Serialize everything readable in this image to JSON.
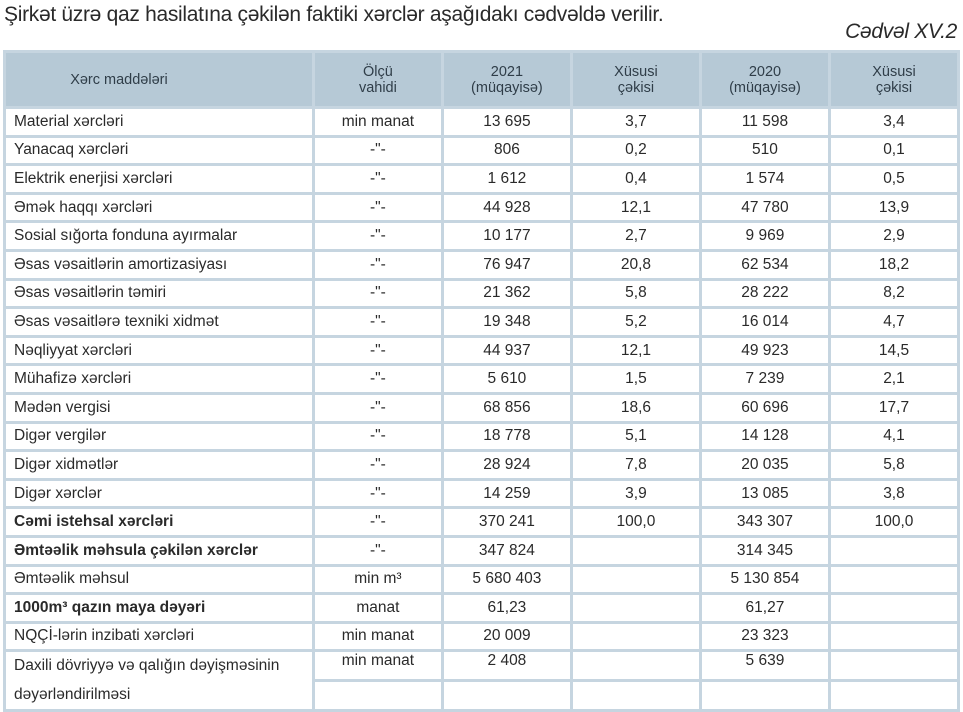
{
  "intro_text": "Şirkət üzrə qaz hasilatına çəkilən faktiki xərclər aşağıdakı cədvəldə verilir.",
  "table_caption": "Cədvəl XV.2",
  "table": {
    "headers": [
      "Xərc maddələri",
      "Ölçü vahidi",
      "2021 (müqayisə)",
      "Xüsusi çəkisi",
      "2020 (müqayisə)",
      "Xüsusi çəkisi"
    ],
    "rows": [
      {
        "name": "Material xərcləri",
        "unit": "min manat",
        "v2021": "13 695",
        "s2021": "3,7",
        "v2020": "11 598",
        "s2020": "3,4"
      },
      {
        "name": "Yanacaq xərcləri",
        "unit": "-\"-",
        "v2021": "806",
        "s2021": "0,2",
        "v2020": "510",
        "s2020": "0,1"
      },
      {
        "name": "Elektrik enerjisi xərcləri",
        "unit": "-\"-",
        "v2021": "1 612",
        "s2021": "0,4",
        "v2020": "1 574",
        "s2020": "0,5"
      },
      {
        "name": "Əmək haqqı xərcləri",
        "unit": "-\"-",
        "v2021": "44 928",
        "s2021": "12,1",
        "v2020": "47 780",
        "s2020": "13,9"
      },
      {
        "name": "Sosial sığorta fonduna ayırmalar",
        "unit": "-\"-",
        "v2021": "10 177",
        "s2021": "2,7",
        "v2020": "9 969",
        "s2020": "2,9"
      },
      {
        "name": "Əsas vəsaitlərin amortizasiyası",
        "unit": "-\"-",
        "v2021": "76 947",
        "s2021": "20,8",
        "v2020": "62 534",
        "s2020": "18,2"
      },
      {
        "name": "Əsas vəsaitlərin təmiri",
        "unit": "-\"-",
        "v2021": "21 362",
        "s2021": "5,8",
        "v2020": "28 222",
        "s2020": "8,2"
      },
      {
        "name": "Əsas vəsaitlərə texniki xidmət",
        "unit": "-\"-",
        "v2021": "19 348",
        "s2021": "5,2",
        "v2020": "16 014",
        "s2020": "4,7"
      },
      {
        "name": "Nəqliyyat xərcləri",
        "unit": "-\"-",
        "v2021": "44 937",
        "s2021": "12,1",
        "v2020": "49 923",
        "s2020": "14,5"
      },
      {
        "name": "Mühafizə xərcləri",
        "unit": "-\"-",
        "v2021": "5 610",
        "s2021": "1,5",
        "v2020": "7 239",
        "s2020": "2,1"
      },
      {
        "name": "Mədən vergisi",
        "unit": "-\"-",
        "v2021": "68 856",
        "s2021": "18,6",
        "v2020": "60 696",
        "s2020": "17,7"
      },
      {
        "name": "Digər vergilər",
        "unit": "-\"-",
        "v2021": "18 778",
        "s2021": "5,1",
        "v2020": "14 128",
        "s2020": "4,1"
      },
      {
        "name": "Digər xidmətlər",
        "unit": "-\"-",
        "v2021": "28 924",
        "s2021": "7,8",
        "v2020": "20 035",
        "s2020": "5,8"
      },
      {
        "name": "Digər xərclər",
        "unit": "-\"-",
        "v2021": "14 259",
        "s2021": "3,9",
        "v2020": "13 085",
        "s2020": "3,8"
      },
      {
        "name": "Cəmi istehsal xərcləri",
        "unit": "-\"-",
        "v2021": "370 241",
        "s2021": "100,0",
        "v2020": "343 307",
        "s2020": "100,0",
        "bold": true
      },
      {
        "name": "Əmtəəlik məhsula çəkilən xərclər",
        "unit": "-\"-",
        "v2021": "347 824",
        "s2021": "",
        "v2020": "314 345",
        "s2020": "",
        "bold": true
      },
      {
        "name": "Əmtəəlik məhsul",
        "unit": "min m³",
        "v2021": "5 680 403",
        "s2021": "",
        "v2020": "5 130 854",
        "s2020": ""
      },
      {
        "name": "1000m³ qazın maya dəyəri",
        "unit": "manat",
        "v2021": "61,23",
        "s2021": "",
        "v2020": "61,27",
        "s2020": "",
        "bold": true
      },
      {
        "name": "NQÇİ-lərin inzibati xərcləri",
        "unit": "min manat",
        "v2021": "20 009",
        "s2021": "",
        "v2020": "23 323",
        "s2020": ""
      },
      {
        "name": "Daxili dövriyyə və qalığın dəyişməsinin dəyərləndirilməsi",
        "unit": "min manat",
        "v2021": "2 408",
        "s2021": "",
        "v2020": "5 639",
        "s2020": "",
        "tall": true
      }
    ]
  }
}
